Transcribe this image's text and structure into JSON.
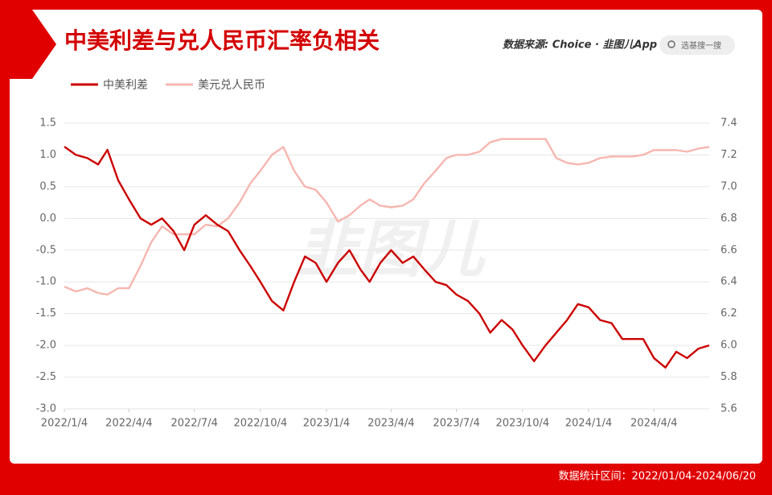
{
  "header": {
    "title": "中美利差与兑人民币汇率负相关",
    "source": "数据来源: Choice · 韭图儿App",
    "search": "选基搜一搜"
  },
  "footer": "数据统计区间：2022/01/04-2024/06/20",
  "watermark": "韭图儿",
  "chart_data": {
    "type": "line",
    "x": [
      "2022-01-04",
      "2022-01-20",
      "2022-02-05",
      "2022-02-20",
      "2022-03-05",
      "2022-03-20",
      "2022-04-04",
      "2022-04-20",
      "2022-05-05",
      "2022-05-20",
      "2022-06-05",
      "2022-06-20",
      "2022-07-04",
      "2022-07-20",
      "2022-08-05",
      "2022-08-20",
      "2022-09-05",
      "2022-09-20",
      "2022-10-04",
      "2022-10-20",
      "2022-11-05",
      "2022-11-20",
      "2022-12-05",
      "2022-12-20",
      "2023-01-04",
      "2023-01-20",
      "2023-02-05",
      "2023-02-20",
      "2023-03-05",
      "2023-03-20",
      "2023-04-04",
      "2023-04-20",
      "2023-05-05",
      "2023-05-20",
      "2023-06-05",
      "2023-06-20",
      "2023-07-04",
      "2023-07-20",
      "2023-08-05",
      "2023-08-20",
      "2023-09-05",
      "2023-09-20",
      "2023-10-04",
      "2023-10-20",
      "2023-11-05",
      "2023-11-20",
      "2023-12-05",
      "2023-12-20",
      "2024-01-04",
      "2024-01-20",
      "2024-02-05",
      "2024-02-20",
      "2024-03-05",
      "2024-03-20",
      "2024-04-04",
      "2024-04-20",
      "2024-05-05",
      "2024-05-20",
      "2024-06-05",
      "2024-06-20"
    ],
    "series": [
      {
        "name": "中美利差",
        "color": "#cc0000",
        "values": [
          1.13,
          1.0,
          0.95,
          0.85,
          1.08,
          0.6,
          0.3,
          0.0,
          -0.1,
          0.0,
          -0.2,
          -0.5,
          -0.1,
          0.05,
          -0.1,
          -0.2,
          -0.5,
          -0.75,
          -1.0,
          -1.3,
          -1.45,
          -1.0,
          -0.6,
          -0.7,
          -1.0,
          -0.7,
          -0.5,
          -0.8,
          -1.0,
          -0.7,
          -0.5,
          -0.7,
          -0.6,
          -0.8,
          -1.0,
          -1.05,
          -1.2,
          -1.3,
          -1.5,
          -1.8,
          -1.6,
          -1.75,
          -2.0,
          -2.25,
          -2.0,
          -1.8,
          -1.6,
          -1.35,
          -1.4,
          -1.6,
          -1.65,
          -1.9,
          -1.9,
          -1.9,
          -2.2,
          -2.35,
          -2.1,
          -2.2,
          -2.05,
          -2.0
        ]
      },
      {
        "name": "美元兑人民币",
        "color": "#f6b6b0",
        "axis": "y2",
        "values": [
          6.37,
          6.34,
          6.36,
          6.33,
          6.32,
          6.36,
          6.36,
          6.5,
          6.65,
          6.75,
          6.7,
          6.7,
          6.7,
          6.76,
          6.75,
          6.8,
          6.9,
          7.02,
          7.1,
          7.2,
          7.25,
          7.1,
          7.0,
          6.98,
          6.9,
          6.78,
          6.82,
          6.88,
          6.92,
          6.88,
          6.87,
          6.88,
          6.92,
          7.02,
          7.1,
          7.18,
          7.2,
          7.2,
          7.22,
          7.28,
          7.3,
          7.3,
          7.3,
          7.3,
          7.3,
          7.18,
          7.15,
          7.14,
          7.15,
          7.18,
          7.19,
          7.19,
          7.19,
          7.2,
          7.23,
          7.23,
          7.23,
          7.22,
          7.24,
          7.25
        ]
      }
    ],
    "xlim": [
      "2022-01-04",
      "2024-06-20"
    ],
    "xticks": [
      {
        "value": "2022-01-04",
        "label": "2022/1/4"
      },
      {
        "value": "2022-04-04",
        "label": "2022/4/4"
      },
      {
        "value": "2022-07-04",
        "label": "2022/7/4"
      },
      {
        "value": "2022-10-04",
        "label": "2022/10/4"
      },
      {
        "value": "2023-01-04",
        "label": "2023/1/4"
      },
      {
        "value": "2023-04-04",
        "label": "2023/4/4"
      },
      {
        "value": "2023-07-04",
        "label": "2023/7/4"
      },
      {
        "value": "2023-10-04",
        "label": "2023/10/4"
      },
      {
        "value": "2024-01-04",
        "label": "2024/1/4"
      },
      {
        "value": "2024-04-04",
        "label": "2024/4/4"
      }
    ],
    "ylim": [
      -3,
      1.5
    ],
    "yticks": [
      1.5,
      {
        "value": 1,
        "label": "1.0"
      },
      0.5,
      {
        "value": 0,
        "label": "0.0"
      },
      -0.5,
      {
        "value": -1,
        "label": "-1.0"
      },
      -1.5,
      {
        "value": -2,
        "label": "-2.0"
      },
      -2.5,
      {
        "value": -3,
        "label": "-3.0"
      }
    ],
    "y2lim": [
      5.6,
      7.4
    ],
    "y2ticks": [
      7.4,
      7.2,
      {
        "value": 7,
        "label": "7.0"
      },
      6.8,
      6.6,
      6.4,
      6.2,
      {
        "value": 6,
        "label": "6.0"
      },
      5.8,
      5.6
    ],
    "grid": true
  }
}
